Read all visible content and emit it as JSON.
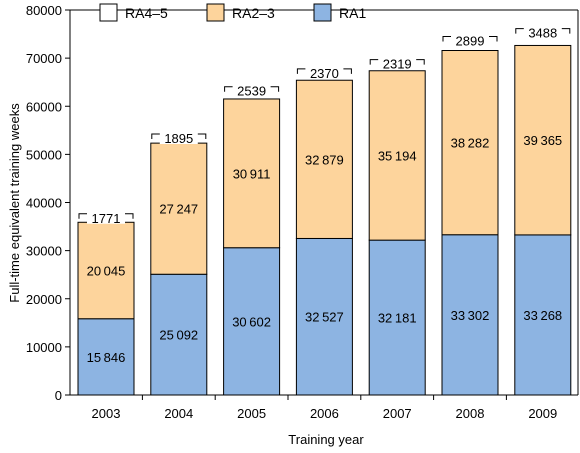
{
  "chart_data": {
    "type": "bar",
    "stacked": true,
    "categories": [
      "2003",
      "2004",
      "2005",
      "2006",
      "2007",
      "2008",
      "2009"
    ],
    "series": [
      {
        "name": "RA1",
        "color": "#8db4e2",
        "values": [
          15846,
          25092,
          30602,
          32527,
          32181,
          33302,
          33268
        ]
      },
      {
        "name": "RA2–3",
        "color": "#fdd49c",
        "values": [
          20045,
          27247,
          30911,
          32879,
          35194,
          38282,
          39365
        ]
      },
      {
        "name": "RA4–5",
        "color": "#ffffff",
        "values": [
          1771,
          1895,
          2539,
          2370,
          2319,
          2899,
          3488
        ]
      }
    ],
    "legend": [
      "RA4–5",
      "RA2–3",
      "RA1"
    ],
    "legend_position": "top",
    "title": "",
    "xlabel": "Training year",
    "ylabel": "Full-time equivalent training weeks",
    "ylim": [
      0,
      80000
    ],
    "yticks": [
      "0",
      "10000",
      "20000",
      "30000",
      "40000",
      "50000",
      "60000",
      "70000",
      "80000"
    ],
    "grid": false
  }
}
